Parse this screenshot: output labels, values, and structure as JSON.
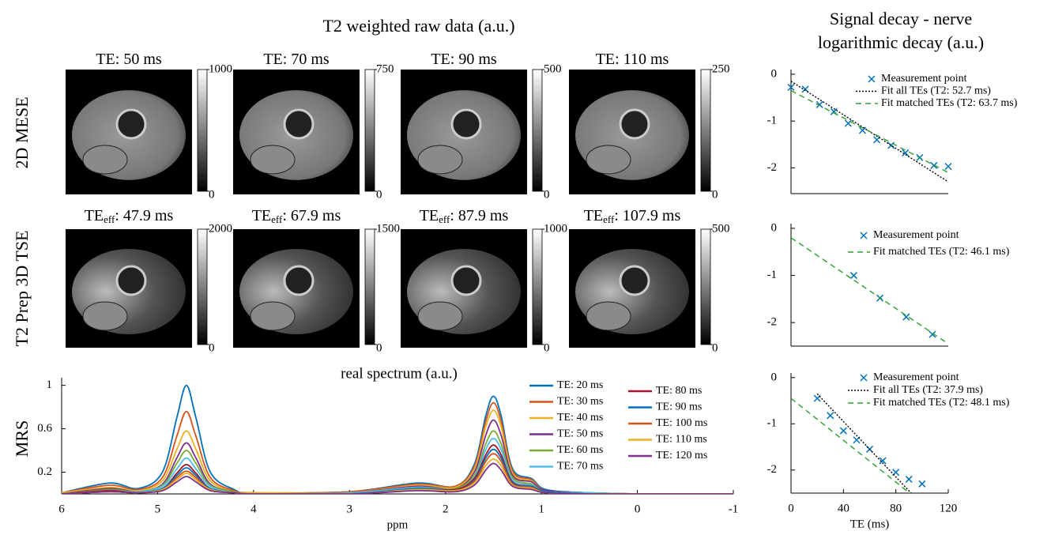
{
  "title": "T2 weighted raw data (a.u.)",
  "right_title": [
    "Signal decay - nerve",
    "logarithmic decay (a.u.)"
  ],
  "row_labels": [
    "2D MESE",
    "T2 Prep 3D TSE",
    "MRS"
  ],
  "images": [
    [
      {
        "title": {
          "text": "TE: 50 ms"
        },
        "cticks": [
          0,
          1000
        ]
      },
      {
        "title": {
          "text": "TE: 70 ms"
        },
        "cticks": [
          0,
          750
        ]
      },
      {
        "title": {
          "text": "TE: 90 ms"
        },
        "cticks": [
          0,
          500
        ]
      },
      {
        "title": {
          "text": "TE: 110 ms"
        },
        "cticks": [
          0,
          250
        ]
      }
    ],
    [
      {
        "title": {
          "text": "TE",
          "sub": "eff",
          "rest": ": 47.9 ms"
        },
        "cticks": [
          0,
          2000
        ]
      },
      {
        "title": {
          "text": "TE",
          "sub": "eff",
          "rest": ": 67.9 ms"
        },
        "cticks": [
          0,
          1500
        ]
      },
      {
        "title": {
          "text": "TE",
          "sub": "eff",
          "rest": ": 87.9 ms"
        },
        "cticks": [
          0,
          1000
        ]
      },
      {
        "title": {
          "text": "TE",
          "sub": "eff",
          "rest": ": 107.9 ms"
        },
        "cticks": [
          0,
          500
        ]
      }
    ]
  ],
  "chart_data": [
    {
      "type": "line",
      "title": "real spectrum (a.u.)",
      "xlabel": "ppm",
      "x": [
        6,
        5.5,
        5.2,
        4.95,
        4.8,
        4.7,
        4.6,
        4.45,
        4.2,
        4,
        3,
        2.3,
        1.9,
        1.7,
        1.58,
        1.5,
        1.42,
        1.3,
        1.1,
        0.95,
        0.5,
        0,
        -1
      ],
      "xlim": [
        6,
        -1
      ],
      "xticks": [
        6,
        5,
        4,
        3,
        2,
        1,
        0,
        -1
      ],
      "ylim": [
        0,
        1.07
      ],
      "yticks": [
        0.2,
        0.6,
        1
      ],
      "series": [
        {
          "name": "TE: 20 ms",
          "color": "#0072BD",
          "values": [
            0.01,
            0.1,
            0.05,
            0.2,
            0.7,
            1,
            0.7,
            0.2,
            0.04,
            0.01,
            0.02,
            0.1,
            0.07,
            0.27,
            0.72,
            0.9,
            0.72,
            0.23,
            0.14,
            0.04,
            0.01,
            0,
            0
          ]
        },
        {
          "name": "TE: 30 ms",
          "color": "#D95319",
          "values": [
            0.01,
            0.08,
            0.04,
            0.15,
            0.53,
            0.76,
            0.53,
            0.15,
            0.03,
            0.01,
            0.02,
            0.09,
            0.07,
            0.25,
            0.67,
            0.84,
            0.67,
            0.21,
            0.13,
            0.03,
            0.01,
            0,
            0
          ]
        },
        {
          "name": "TE: 40 ms",
          "color": "#EDB120",
          "values": [
            0.01,
            0.06,
            0.03,
            0.12,
            0.41,
            0.58,
            0.41,
            0.12,
            0.02,
            0.01,
            0.01,
            0.08,
            0.06,
            0.23,
            0.62,
            0.77,
            0.62,
            0.19,
            0.12,
            0.03,
            0.01,
            0,
            0
          ]
        },
        {
          "name": "TE: 50 ms",
          "color": "#7E2F8E",
          "values": [
            0,
            0.05,
            0.02,
            0.09,
            0.33,
            0.47,
            0.33,
            0.09,
            0.02,
            0,
            0.01,
            0.07,
            0.05,
            0.2,
            0.54,
            0.68,
            0.54,
            0.17,
            0.11,
            0.03,
            0.01,
            0,
            0
          ]
        },
        {
          "name": "TE: 60 ms",
          "color": "#77AC30",
          "values": [
            0,
            0.04,
            0.02,
            0.08,
            0.28,
            0.4,
            0.28,
            0.08,
            0.02,
            0,
            0.01,
            0.06,
            0.05,
            0.17,
            0.46,
            0.58,
            0.46,
            0.15,
            0.09,
            0.02,
            0.01,
            0,
            0
          ]
        },
        {
          "name": "TE: 70 ms",
          "color": "#4DBEEE",
          "values": [
            0,
            0.03,
            0.02,
            0.07,
            0.23,
            0.33,
            0.23,
            0.07,
            0.01,
            0,
            0.01,
            0.06,
            0.04,
            0.15,
            0.41,
            0.51,
            0.41,
            0.13,
            0.08,
            0.02,
            0.01,
            0,
            0
          ]
        },
        {
          "name": "TE: 80 ms",
          "color": "#A2142F",
          "values": [
            0,
            0.03,
            0.01,
            0.05,
            0.19,
            0.27,
            0.19,
            0.05,
            0.01,
            0,
            0,
            0.05,
            0.04,
            0.14,
            0.36,
            0.45,
            0.36,
            0.11,
            0.07,
            0.02,
            0,
            0,
            0
          ]
        },
        {
          "name": "TE: 90 ms",
          "color": "#0072BD",
          "values": [
            0,
            0.02,
            0.01,
            0.05,
            0.17,
            0.24,
            0.17,
            0.05,
            0.01,
            0,
            0,
            0.05,
            0.03,
            0.12,
            0.33,
            0.41,
            0.33,
            0.1,
            0.07,
            0.02,
            0,
            0,
            0
          ]
        },
        {
          "name": "TE: 100 ms",
          "color": "#D95319",
          "values": [
            0,
            0.02,
            0.01,
            0.04,
            0.15,
            0.21,
            0.15,
            0.04,
            0.01,
            0,
            0,
            0.04,
            0.03,
            0.11,
            0.3,
            0.37,
            0.3,
            0.09,
            0.06,
            0.01,
            0,
            0,
            0
          ]
        },
        {
          "name": "TE: 110 ms",
          "color": "#EDB120",
          "values": [
            0,
            0.02,
            0.01,
            0.04,
            0.13,
            0.19,
            0.13,
            0.04,
            0.01,
            0,
            0,
            0.04,
            0.03,
            0.1,
            0.26,
            0.32,
            0.26,
            0.08,
            0.05,
            0.01,
            0,
            0,
            0
          ]
        },
        {
          "name": "TE: 120 ms",
          "color": "#7E2F8E",
          "values": [
            0,
            0.02,
            0.01,
            0.03,
            0.11,
            0.16,
            0.11,
            0.03,
            0.01,
            0,
            0,
            0.03,
            0.02,
            0.08,
            0.22,
            0.28,
            0.22,
            0.07,
            0.04,
            0.01,
            0,
            0,
            0
          ]
        }
      ]
    },
    {
      "type": "scatter",
      "xlim": [
        10,
        120
      ],
      "ylim": [
        -2.55,
        0.1
      ],
      "yticks": [
        0,
        -1,
        -2
      ],
      "series": [
        {
          "name": "Measurement point",
          "color": "#0072BD",
          "marker": "x",
          "x": [
            10,
            20,
            30,
            40,
            50,
            60,
            70,
            80,
            90,
            100,
            110,
            120
          ],
          "values": [
            -0.28,
            -0.32,
            -0.65,
            -0.8,
            -1.05,
            -1.2,
            -1.4,
            -1.52,
            -1.68,
            -1.78,
            -1.95,
            -1.97
          ]
        },
        {
          "name": "Fit all TEs (T2: 52.7 ms)",
          "color": "#000000",
          "style": "dotted",
          "x": [
            10,
            120
          ],
          "values": [
            -0.15,
            -2.3
          ]
        },
        {
          "name": "Fit matched TEs  (T2: 63.7 ms)",
          "color": "#2CA02C",
          "style": "dashed",
          "x": [
            10,
            120
          ],
          "values": [
            -0.35,
            -2.1
          ]
        }
      ]
    },
    {
      "type": "scatter",
      "xlim": [
        0,
        120
      ],
      "ylim": [
        -2.5,
        0.1
      ],
      "yticks": [
        0,
        -1,
        -2
      ],
      "series": [
        {
          "name": "Measurement point",
          "color": "#0072BD",
          "marker": "x",
          "x": [
            47.9,
            67.9,
            87.9,
            107.9
          ],
          "values": [
            -1.0,
            -1.48,
            -1.88,
            -2.25
          ]
        },
        {
          "name": "Fit matched TEs  (T2: 46.1 ms)",
          "color": "#2CA02C",
          "style": "dashed",
          "x": [
            0,
            120
          ],
          "values": [
            -0.2,
            -2.45
          ]
        }
      ]
    },
    {
      "type": "scatter",
      "xlim": [
        0,
        120
      ],
      "ylim": [
        -2.5,
        0.1
      ],
      "yticks": [
        0,
        -1,
        -2
      ],
      "xticks": [
        0,
        40,
        80,
        120
      ],
      "xlabel": "TE (ms)",
      "series": [
        {
          "name": "Measurement point",
          "color": "#0072BD",
          "marker": "x",
          "x": [
            20,
            30,
            40,
            50,
            60,
            70,
            80,
            90,
            100
          ],
          "values": [
            -0.45,
            -0.82,
            -1.15,
            -1.35,
            -1.55,
            -1.8,
            -2.05,
            -2.2,
            -2.3
          ]
        },
        {
          "name": "Fit all TEs (T2: 37.9 ms)",
          "color": "#000000",
          "style": "dotted",
          "x": [
            20,
            95
          ],
          "values": [
            -0.35,
            -2.6
          ]
        },
        {
          "name": "Fit matched TEs  (T2: 48.1 ms)",
          "color": "#2CA02C",
          "style": "dashed",
          "x": [
            0,
            95
          ],
          "values": [
            -0.45,
            -2.6
          ]
        }
      ]
    }
  ]
}
